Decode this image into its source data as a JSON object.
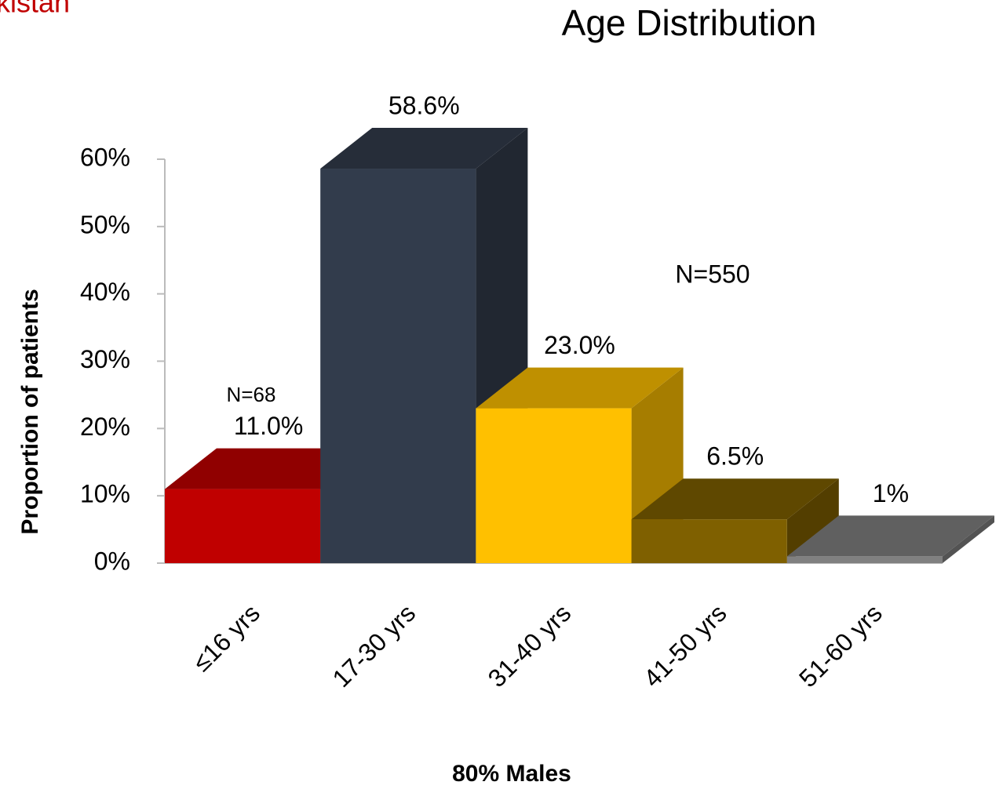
{
  "chart_data": {
    "type": "bar3d",
    "title": "Age Distribution",
    "header_fragment": "kistan",
    "ylabel": "Proportion of patients",
    "xlabel": "80% Males",
    "annotations": [
      "N=68",
      "N=550"
    ],
    "categories": [
      "≤16 yrs",
      "17-30 yrs",
      "31-40 yrs",
      "41-50 yrs",
      "51-60 yrs"
    ],
    "values": [
      11.0,
      58.6,
      23.0,
      6.5,
      1
    ],
    "value_labels": [
      "11.0%",
      "58.6%",
      "23.0%",
      "6.5%",
      "1%"
    ],
    "colors": [
      "#c00000",
      "#323c4c",
      "#ffc000",
      "#7f6000",
      "#808080"
    ],
    "ylim": [
      0,
      60
    ],
    "yticks": [
      {
        "value": 0,
        "label": "0%"
      },
      {
        "value": 10,
        "label": "10%"
      },
      {
        "value": 20,
        "label": "20%"
      },
      {
        "value": 30,
        "label": "30%"
      },
      {
        "value": 40,
        "label": "40%"
      },
      {
        "value": 50,
        "label": "50%"
      },
      {
        "value": 60,
        "label": "60%"
      }
    ],
    "grid": false
  }
}
